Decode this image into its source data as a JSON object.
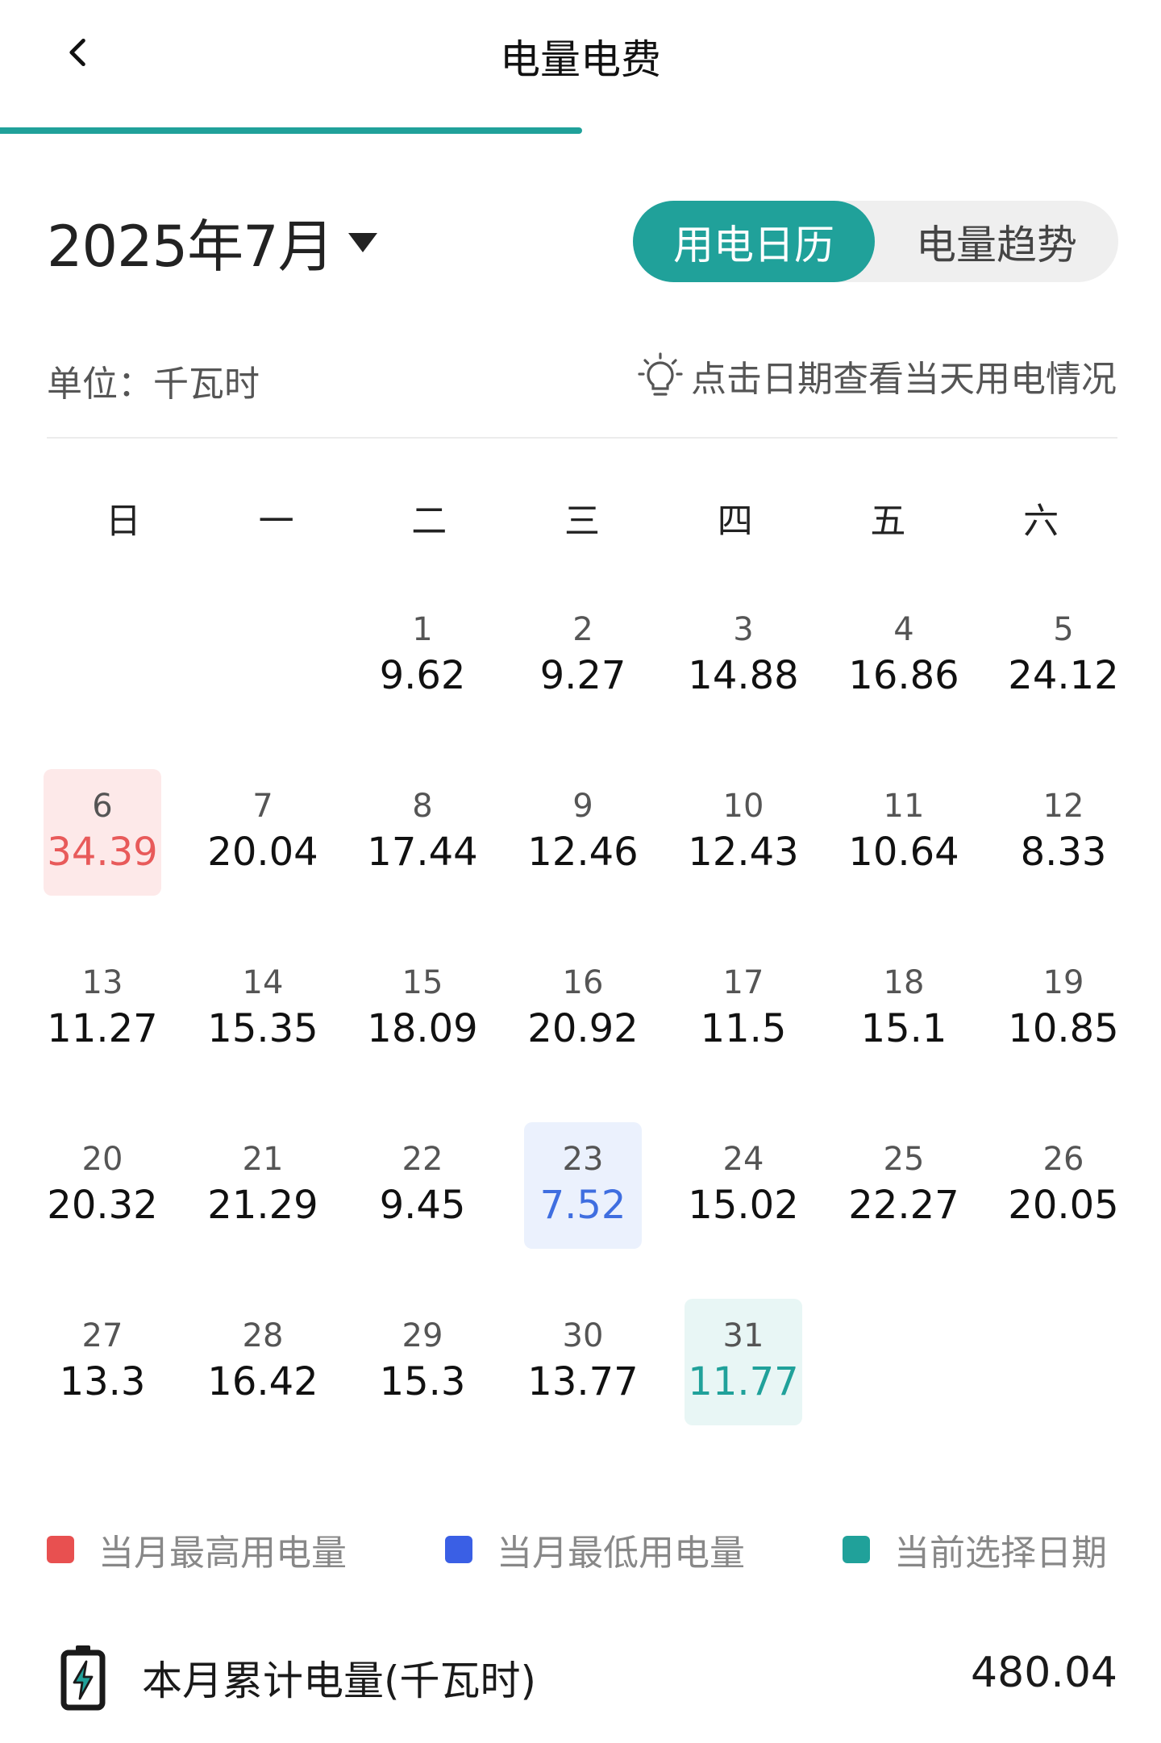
{
  "header": {
    "title": "电量电费"
  },
  "month_selector": {
    "label": "2025年7月"
  },
  "view_toggle": {
    "active": "用电日历",
    "inactive": "电量趋势"
  },
  "unit": "单位：千瓦时",
  "hint": "点击日期查看当天用电情况",
  "weekdays": [
    "日",
    "一",
    "二",
    "三",
    "四",
    "五",
    "六"
  ],
  "first_weekday_index": 2,
  "days": [
    {
      "day": "1",
      "value": "9.62"
    },
    {
      "day": "2",
      "value": "9.27"
    },
    {
      "day": "3",
      "value": "14.88"
    },
    {
      "day": "4",
      "value": "16.86"
    },
    {
      "day": "5",
      "value": "24.12"
    },
    {
      "day": "6",
      "value": "34.39",
      "state": "highest"
    },
    {
      "day": "7",
      "value": "20.04"
    },
    {
      "day": "8",
      "value": "17.44"
    },
    {
      "day": "9",
      "value": "12.46"
    },
    {
      "day": "10",
      "value": "12.43"
    },
    {
      "day": "11",
      "value": "10.64"
    },
    {
      "day": "12",
      "value": "8.33"
    },
    {
      "day": "13",
      "value": "11.27"
    },
    {
      "day": "14",
      "value": "15.35"
    },
    {
      "day": "15",
      "value": "18.09"
    },
    {
      "day": "16",
      "value": "20.92"
    },
    {
      "day": "17",
      "value": "11.5"
    },
    {
      "day": "18",
      "value": "15.1"
    },
    {
      "day": "19",
      "value": "10.85"
    },
    {
      "day": "20",
      "value": "20.32"
    },
    {
      "day": "21",
      "value": "21.29"
    },
    {
      "day": "22",
      "value": "9.45"
    },
    {
      "day": "23",
      "value": "7.52",
      "state": "lowest"
    },
    {
      "day": "24",
      "value": "15.02"
    },
    {
      "day": "25",
      "value": "22.27"
    },
    {
      "day": "26",
      "value": "20.05"
    },
    {
      "day": "27",
      "value": "13.3"
    },
    {
      "day": "28",
      "value": "16.42"
    },
    {
      "day": "29",
      "value": "15.3"
    },
    {
      "day": "30",
      "value": "13.77"
    },
    {
      "day": "31",
      "value": "11.77",
      "state": "selected"
    }
  ],
  "legend": [
    {
      "label": "当月最高用电量",
      "color": "#e85050"
    },
    {
      "label": "当月最低用电量",
      "color": "#3a5fe5"
    },
    {
      "label": "当前选择日期",
      "color": "#20a19a"
    }
  ],
  "summary": {
    "label": "本月累计电量(千瓦时)",
    "value": "480.04",
    "icon": "battery-charging-icon"
  },
  "colors": {
    "accent": "#20a19a",
    "highest": "#e85a5a",
    "lowest": "#3f6ee0"
  }
}
